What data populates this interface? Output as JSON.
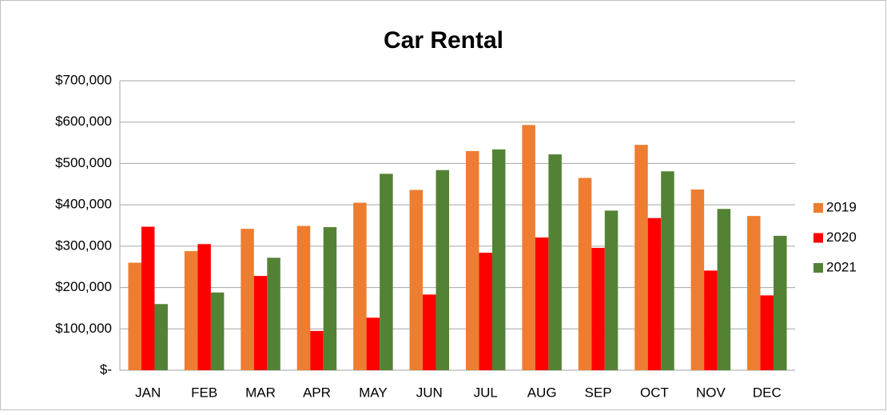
{
  "chart_data": {
    "type": "bar",
    "title": "Car Rental",
    "categories": [
      "JAN",
      "FEB",
      "MAR",
      "APR",
      "MAY",
      "JUN",
      "JUL",
      "AUG",
      "SEP",
      "OCT",
      "NOV",
      "DEC"
    ],
    "series": [
      {
        "name": "2019",
        "color": "#ed7d31",
        "values": [
          260000,
          288000,
          342000,
          349000,
          405000,
          436000,
          530000,
          593000,
          465000,
          545000,
          437000,
          373000
        ]
      },
      {
        "name": "2020",
        "color": "#ff0000",
        "values": [
          347000,
          305000,
          228000,
          95000,
          127000,
          183000,
          284000,
          321000,
          296000,
          368000,
          241000,
          181000
        ]
      },
      {
        "name": "2021",
        "color": "#548235",
        "values": [
          160000,
          188000,
          272000,
          346000,
          475000,
          484000,
          534000,
          522000,
          386000,
          481000,
          390000,
          325000
        ]
      }
    ],
    "ylim": [
      0,
      700000
    ],
    "yticks": [
      {
        "value": 0,
        "label": "$-"
      },
      {
        "value": 100000,
        "label": "$100,000"
      },
      {
        "value": 200000,
        "label": "$200,000"
      },
      {
        "value": 300000,
        "label": "$300,000"
      },
      {
        "value": 400000,
        "label": "$400,000"
      },
      {
        "value": 500000,
        "label": "$500,000"
      },
      {
        "value": 600000,
        "label": "$600,000"
      },
      {
        "value": 700000,
        "label": "$700,000"
      }
    ],
    "grid": true,
    "legend": "right"
  }
}
